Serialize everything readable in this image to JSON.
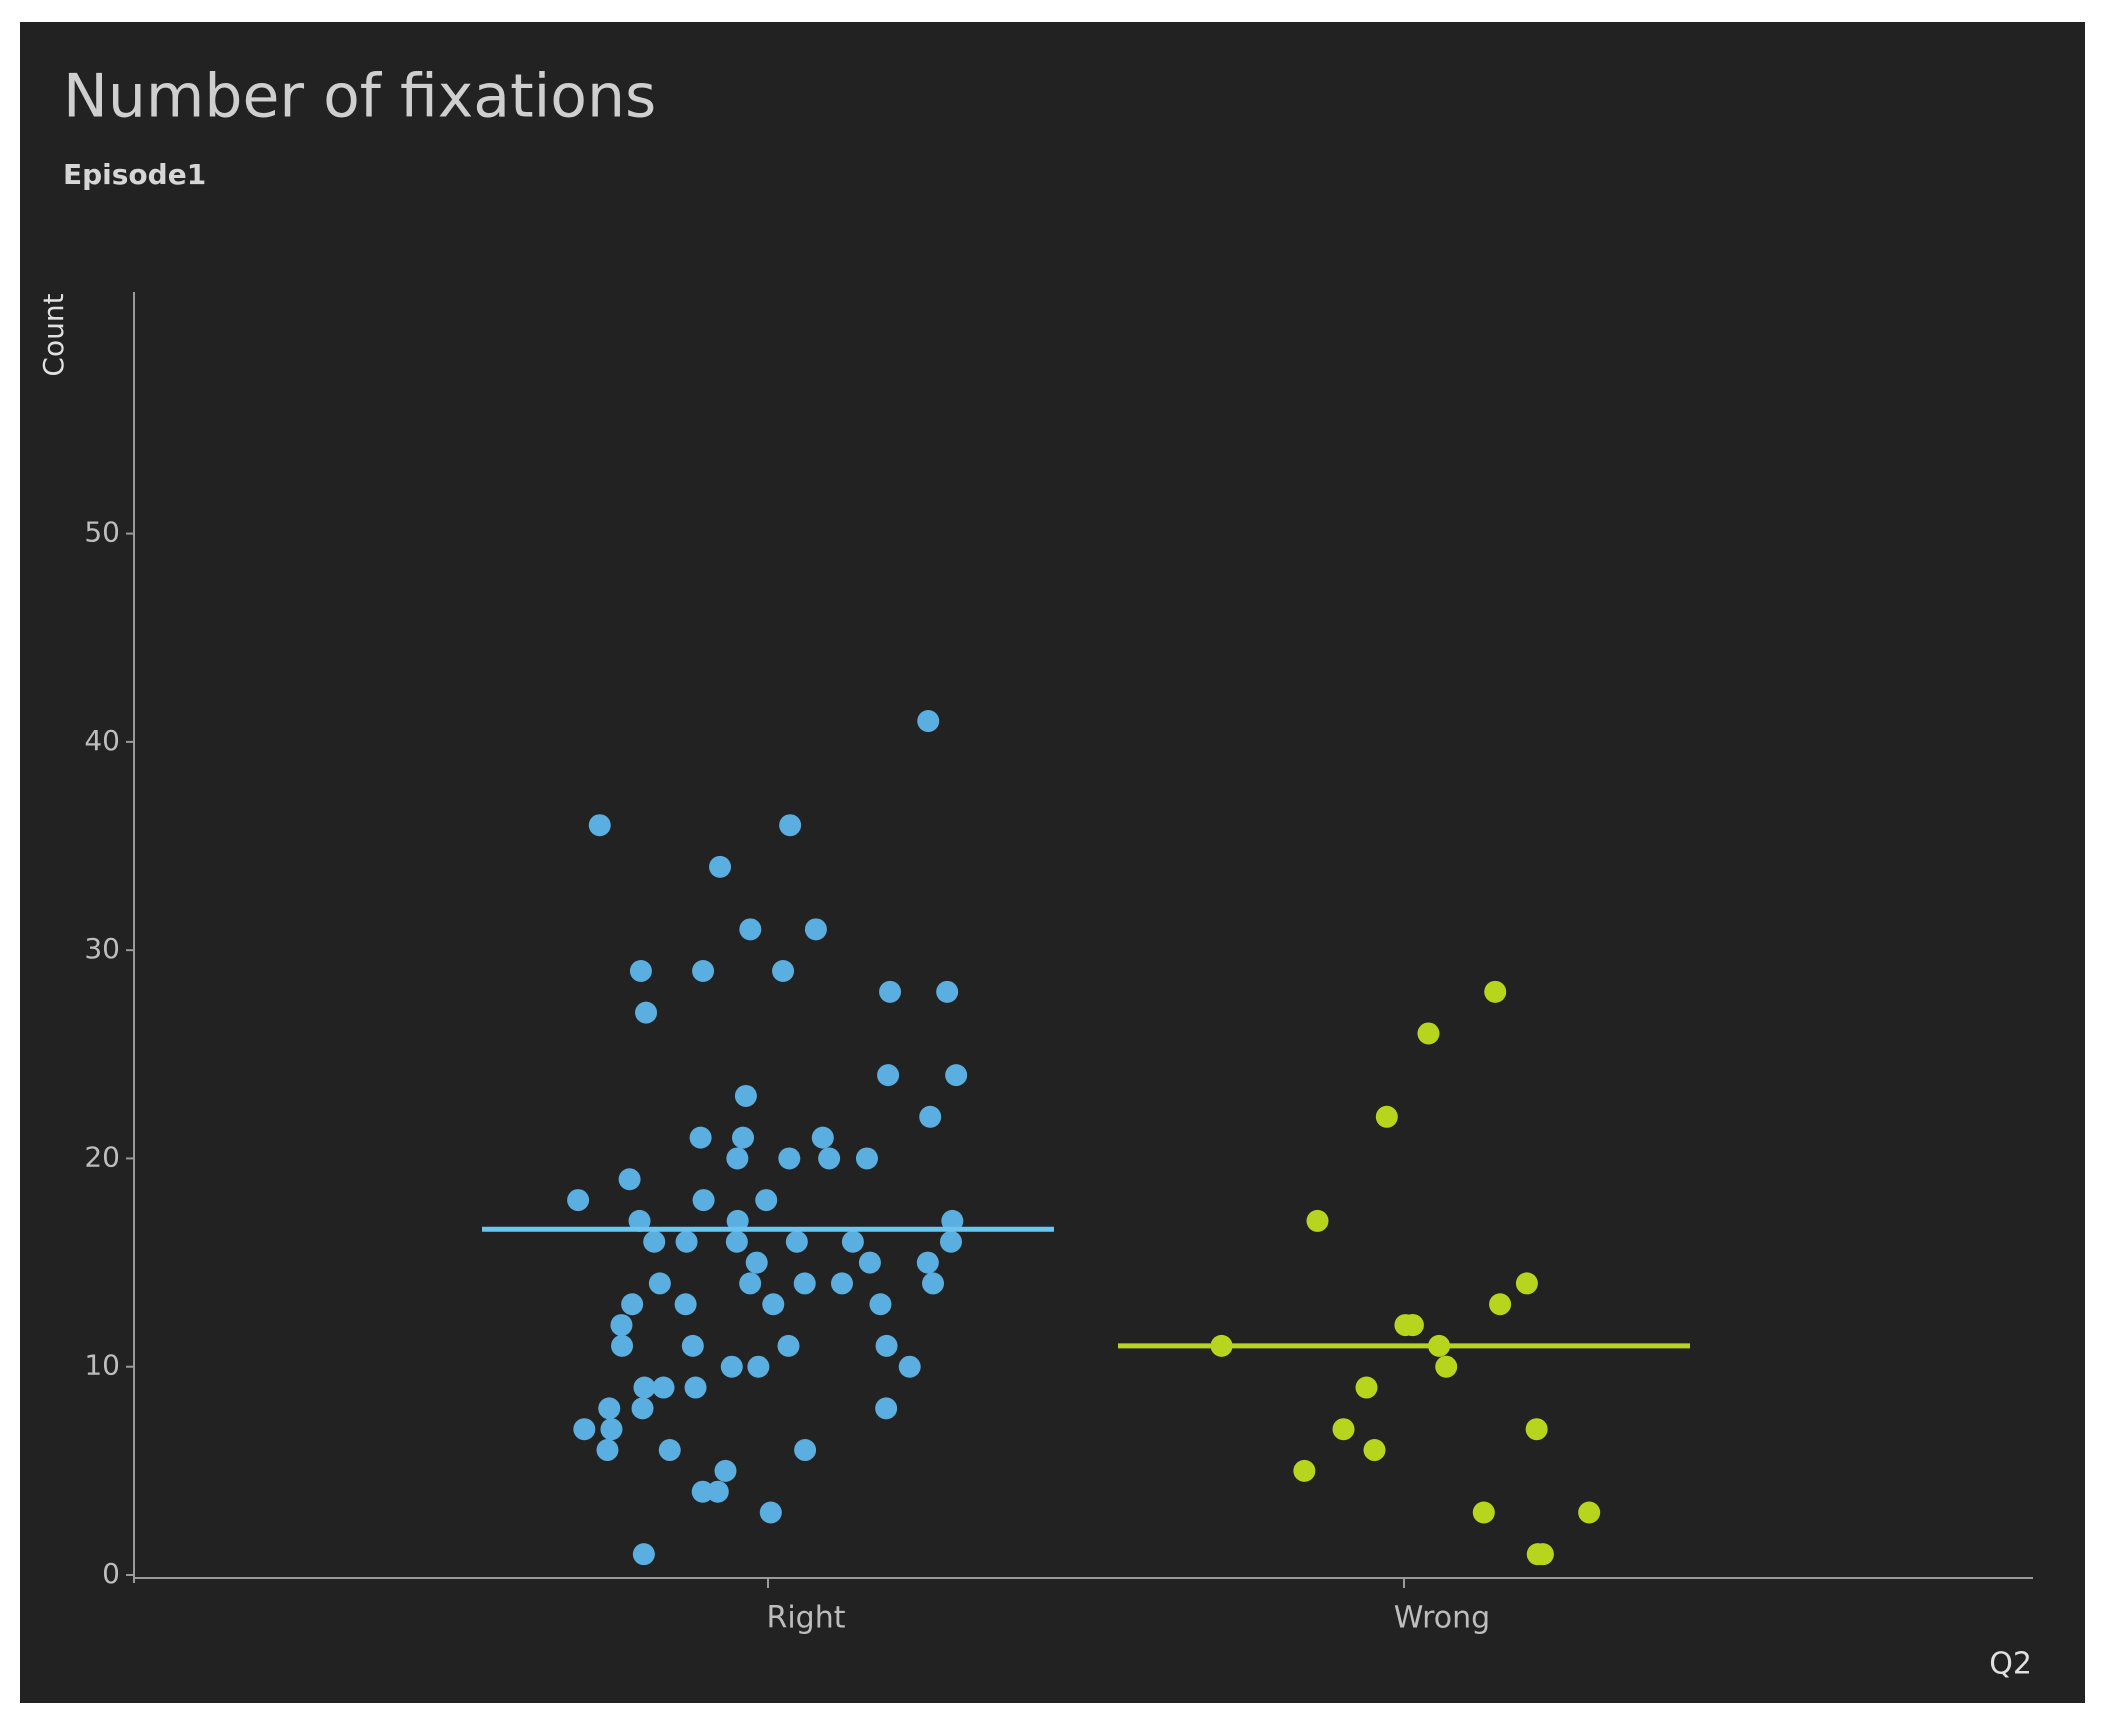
{
  "chart_data": {
    "type": "strip",
    "title": "Number of fixations",
    "subtitle": "Episode1",
    "y_label": "Count",
    "x_label": "Q2",
    "categories": [
      "Right",
      "Wrong"
    ],
    "groups": [
      {
        "color": "#5aaee0",
        "mean_color": "#6cc4f0",
        "mean": 16.6,
        "values": [
          41,
          36,
          36,
          34,
          31,
          31,
          29,
          29,
          29,
          28,
          28,
          27,
          24,
          24,
          23,
          22,
          21,
          21,
          21,
          20,
          20,
          20,
          20,
          19,
          18,
          18,
          18,
          17,
          17,
          17,
          16,
          16,
          16,
          16,
          16,
          16,
          15,
          15,
          15,
          14,
          14,
          14,
          14,
          14,
          13,
          13,
          13,
          13,
          12,
          11,
          11,
          11,
          11,
          10,
          10,
          10,
          9,
          9,
          9,
          8,
          8,
          8,
          7,
          7,
          6,
          6,
          6,
          5,
          4,
          4,
          3,
          1
        ]
      },
      {
        "color": "#b8d51e",
        "mean_color": "#b8d51e",
        "mean": 11,
        "values": [
          28,
          26,
          22,
          17,
          14,
          13,
          12,
          12,
          12,
          11,
          11,
          10,
          9,
          7,
          7,
          6,
          5,
          3,
          3,
          1,
          1
        ]
      }
    ],
    "ylim": [
      0,
      61.6
    ],
    "yticks": [
      0,
      10,
      20,
      30,
      40,
      50
    ]
  }
}
